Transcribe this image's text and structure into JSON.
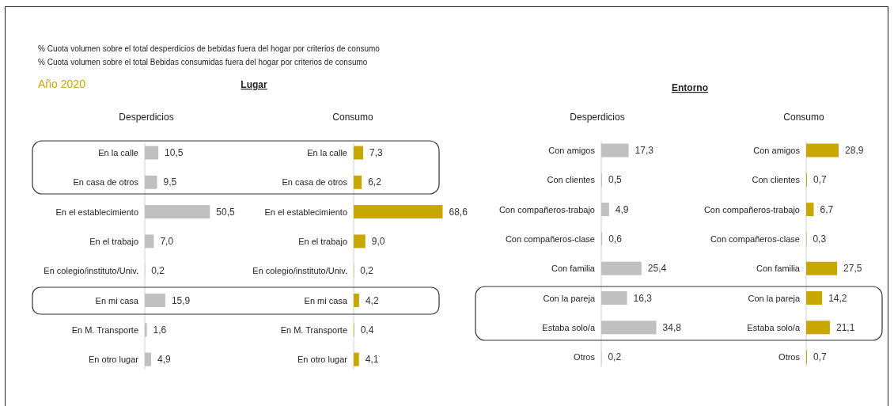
{
  "chart_data": [
    {
      "type": "bar",
      "orientation": "horizontal",
      "title": "Desperdicios",
      "annotations": [
        "% Cuota volumen sobre el total desperdicios de bebidas fuera del hogar por criterios de consumo",
        "% Cuota volumen sobre el total Bebidas consumidas fuera del hogar por criterios de consumo",
        "Año 2020",
        "Lugar"
      ],
      "categories": [
        "En la calle",
        "En casa de otros",
        "En el establecimiento",
        "En el trabajo",
        "En colegio/instituto/Univ.",
        "En mi casa",
        "En M. Transporte",
        "En otro lugar"
      ],
      "values": [
        10.5,
        9.5,
        50.5,
        7.0,
        0.2,
        15.9,
        1.6,
        4.9
      ],
      "value_labels": [
        "10,5",
        "9,5",
        "50,5",
        "7,0",
        "0,2",
        "15,9",
        "1,6",
        "4,9"
      ],
      "color": "#c0c0c0"
    },
    {
      "type": "bar",
      "orientation": "horizontal",
      "title": "Consumo",
      "categories": [
        "En la calle",
        "En casa de otros",
        "En el establecimiento",
        "En el trabajo",
        "En colegio/instituto/Univ.",
        "En mi casa",
        "En M. Transporte",
        "En otro lugar"
      ],
      "values": [
        7.3,
        6.2,
        68.6,
        9.0,
        0.2,
        4.2,
        0.4,
        4.1
      ],
      "value_labels": [
        "7,3",
        "6,2",
        "68,6",
        "9,0",
        "0,2",
        "4,2",
        "0,4",
        "4,1"
      ],
      "color": "#c8a800"
    },
    {
      "type": "bar",
      "orientation": "horizontal",
      "title": "Desperdicios",
      "annotations": [
        "Entorno"
      ],
      "categories": [
        "Con amigos",
        "Con clientes",
        "Con compañeros-trabajo",
        "Con compañeros-clase",
        "Con familia",
        "Con la pareja",
        "Estaba solo/a",
        "Otros"
      ],
      "values": [
        17.3,
        0.5,
        4.9,
        0.6,
        25.4,
        16.3,
        34.8,
        0.2
      ],
      "value_labels": [
        "17,3",
        "0,5",
        "4,9",
        "0,6",
        "25,4",
        "16,3",
        "34,8",
        "0,2"
      ],
      "color": "#c0c0c0"
    },
    {
      "type": "bar",
      "orientation": "horizontal",
      "title": "Consumo",
      "categories": [
        "Con amigos",
        "Con clientes",
        "Con compañeros-trabajo",
        "Con compañeros-clase",
        "Con familia",
        "Con la pareja",
        "Estaba solo/a",
        "Otros"
      ],
      "values": [
        28.9,
        0.7,
        6.7,
        0.3,
        27.5,
        14.2,
        21.1,
        0.7
      ],
      "value_labels": [
        "28,9",
        "0,7",
        "6,7",
        "0,3",
        "27,5",
        "14,2",
        "21,1",
        "0,7"
      ],
      "color": "#c8a800"
    }
  ]
}
